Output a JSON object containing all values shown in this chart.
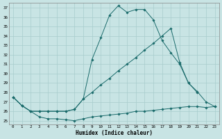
{
  "xlabel": "Humidex (Indice chaleur)",
  "bg_color": "#c8e4e4",
  "line_color": "#1a6b6b",
  "grid_color": "#a8cccc",
  "xlim_min": -0.5,
  "xlim_max": 23.5,
  "ylim_min": 24.6,
  "ylim_max": 37.5,
  "yticks": [
    25,
    26,
    27,
    28,
    29,
    30,
    31,
    32,
    33,
    34,
    35,
    36,
    37
  ],
  "xticks": [
    0,
    1,
    2,
    3,
    4,
    5,
    6,
    7,
    8,
    9,
    10,
    11,
    12,
    13,
    14,
    15,
    16,
    17,
    18,
    19,
    20,
    21,
    22,
    23
  ],
  "line1_x": [
    0,
    1,
    2,
    3,
    4,
    5,
    6,
    7,
    8,
    9,
    10,
    11,
    12,
    13,
    14,
    15,
    16,
    17,
    18,
    19,
    20,
    21,
    22,
    23
  ],
  "line1_y": [
    27.5,
    26.6,
    26.0,
    25.4,
    25.2,
    25.2,
    25.1,
    25.0,
    25.2,
    25.4,
    25.5,
    25.6,
    25.7,
    25.8,
    26.0,
    26.0,
    26.1,
    26.2,
    26.3,
    26.4,
    26.5,
    26.5,
    26.4,
    26.5
  ],
  "line2_x": [
    0,
    1,
    2,
    3,
    4,
    5,
    6,
    7,
    8,
    9,
    10,
    11,
    12,
    13,
    14,
    15,
    16,
    17,
    18,
    19,
    20,
    21
  ],
  "line2_y": [
    27.5,
    26.6,
    26.0,
    26.0,
    26.0,
    26.0,
    26.0,
    26.2,
    27.3,
    31.5,
    33.8,
    36.2,
    37.2,
    36.5,
    36.8,
    36.8,
    35.7,
    33.5,
    32.2,
    31.0,
    29.0,
    28.0
  ],
  "line3_x": [
    0,
    1,
    2,
    3,
    4,
    5,
    6,
    7,
    8,
    9,
    10,
    11,
    12,
    13,
    14,
    15,
    16,
    17,
    18,
    19,
    20,
    21,
    22,
    23
  ],
  "line3_y": [
    27.5,
    26.6,
    26.0,
    26.0,
    26.0,
    26.0,
    26.0,
    26.2,
    27.3,
    28.0,
    28.8,
    29.5,
    30.3,
    31.0,
    31.7,
    32.5,
    33.2,
    34.0,
    34.8,
    31.2,
    29.0,
    28.1,
    27.0,
    26.5
  ]
}
